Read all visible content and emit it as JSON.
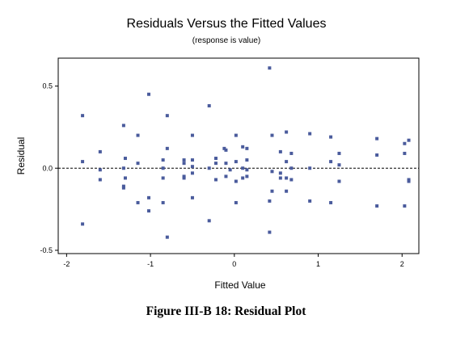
{
  "caption": "Figure III-B 18:  Residual Plot",
  "chart_data": {
    "type": "scatter",
    "title": "Residuals Versus the Fitted Values",
    "subtitle": "(response is value)",
    "xlabel": "Fitted Value",
    "ylabel": "Residual",
    "xlim": [
      -2.1,
      2.2
    ],
    "ylim": [
      -0.52,
      0.67
    ],
    "xticks": [
      -2,
      -1,
      0,
      1,
      2
    ],
    "xtick_labels": [
      "-2",
      "-1",
      "0",
      "1",
      "2"
    ],
    "yticks": [
      -0.5,
      0.0,
      0.5
    ],
    "ytick_labels": [
      "-0.5",
      "0.0",
      "0.5"
    ],
    "reference_line": 0.0,
    "colors": {
      "marker": "#4a5b9c",
      "reference_line": "#000000"
    },
    "points": [
      {
        "x": -1.81,
        "y": 0.32
      },
      {
        "x": -1.81,
        "y": 0.04
      },
      {
        "x": -1.81,
        "y": -0.34
      },
      {
        "x": -1.6,
        "y": 0.1
      },
      {
        "x": -1.6,
        "y": -0.01
      },
      {
        "x": -1.6,
        "y": -0.07
      },
      {
        "x": -1.32,
        "y": 0.26
      },
      {
        "x": -1.3,
        "y": 0.06
      },
      {
        "x": -1.32,
        "y": 0.0
      },
      {
        "x": -1.3,
        "y": -0.06
      },
      {
        "x": -1.32,
        "y": -0.11
      },
      {
        "x": -1.32,
        "y": -0.12
      },
      {
        "x": -1.15,
        "y": 0.2
      },
      {
        "x": -1.15,
        "y": 0.03
      },
      {
        "x": -1.15,
        "y": -0.21
      },
      {
        "x": -1.02,
        "y": 0.45
      },
      {
        "x": -1.02,
        "y": -0.18
      },
      {
        "x": -1.02,
        "y": -0.26
      },
      {
        "x": -0.85,
        "y": 0.05
      },
      {
        "x": -0.85,
        "y": 0.0
      },
      {
        "x": -0.85,
        "y": -0.06
      },
      {
        "x": -0.85,
        "y": -0.21
      },
      {
        "x": -0.8,
        "y": 0.32
      },
      {
        "x": -0.8,
        "y": 0.12
      },
      {
        "x": -0.8,
        "y": -0.42
      },
      {
        "x": -0.6,
        "y": 0.05
      },
      {
        "x": -0.6,
        "y": 0.03
      },
      {
        "x": -0.6,
        "y": -0.05
      },
      {
        "x": -0.6,
        "y": -0.06
      },
      {
        "x": -0.5,
        "y": 0.2
      },
      {
        "x": -0.5,
        "y": 0.05
      },
      {
        "x": -0.5,
        "y": 0.01
      },
      {
        "x": -0.5,
        "y": -0.03
      },
      {
        "x": -0.5,
        "y": -0.18
      },
      {
        "x": -0.3,
        "y": 0.38
      },
      {
        "x": -0.3,
        "y": 0.0
      },
      {
        "x": -0.3,
        "y": -0.32
      },
      {
        "x": -0.22,
        "y": 0.06
      },
      {
        "x": -0.22,
        "y": 0.03
      },
      {
        "x": -0.22,
        "y": -0.07
      },
      {
        "x": -0.12,
        "y": 0.12
      },
      {
        "x": -0.1,
        "y": 0.11
      },
      {
        "x": -0.1,
        "y": 0.03
      },
      {
        "x": -0.1,
        "y": -0.05
      },
      {
        "x": -0.05,
        "y": -0.01
      },
      {
        "x": 0.02,
        "y": 0.2
      },
      {
        "x": 0.02,
        "y": 0.04
      },
      {
        "x": 0.02,
        "y": -0.08
      },
      {
        "x": 0.02,
        "y": -0.21
      },
      {
        "x": 0.1,
        "y": 0.13
      },
      {
        "x": 0.1,
        "y": 0.0
      },
      {
        "x": 0.1,
        "y": -0.06
      },
      {
        "x": 0.15,
        "y": 0.12
      },
      {
        "x": 0.15,
        "y": 0.05
      },
      {
        "x": 0.15,
        "y": -0.01
      },
      {
        "x": 0.15,
        "y": -0.05
      },
      {
        "x": 0.42,
        "y": 0.61
      },
      {
        "x": 0.42,
        "y": -0.2
      },
      {
        "x": 0.42,
        "y": -0.39
      },
      {
        "x": 0.45,
        "y": 0.2
      },
      {
        "x": 0.45,
        "y": -0.02
      },
      {
        "x": 0.45,
        "y": -0.14
      },
      {
        "x": 0.55,
        "y": 0.1
      },
      {
        "x": 0.55,
        "y": -0.03
      },
      {
        "x": 0.55,
        "y": -0.06
      },
      {
        "x": 0.62,
        "y": 0.22
      },
      {
        "x": 0.62,
        "y": 0.04
      },
      {
        "x": 0.62,
        "y": -0.06
      },
      {
        "x": 0.62,
        "y": -0.14
      },
      {
        "x": 0.68,
        "y": 0.09
      },
      {
        "x": 0.68,
        "y": 0.0
      },
      {
        "x": 0.68,
        "y": -0.07
      },
      {
        "x": 0.9,
        "y": 0.21
      },
      {
        "x": 0.9,
        "y": 0.0
      },
      {
        "x": 0.9,
        "y": -0.2
      },
      {
        "x": 1.15,
        "y": 0.19
      },
      {
        "x": 1.15,
        "y": 0.04
      },
      {
        "x": 1.15,
        "y": -0.21
      },
      {
        "x": 1.25,
        "y": 0.09
      },
      {
        "x": 1.25,
        "y": 0.02
      },
      {
        "x": 1.25,
        "y": -0.08
      },
      {
        "x": 1.7,
        "y": 0.18
      },
      {
        "x": 1.7,
        "y": 0.08
      },
      {
        "x": 1.7,
        "y": -0.23
      },
      {
        "x": 2.03,
        "y": 0.15
      },
      {
        "x": 2.03,
        "y": 0.09
      },
      {
        "x": 2.03,
        "y": -0.23
      },
      {
        "x": 2.08,
        "y": 0.17
      },
      {
        "x": 2.08,
        "y": -0.07
      },
      {
        "x": 2.08,
        "y": -0.08
      }
    ]
  }
}
